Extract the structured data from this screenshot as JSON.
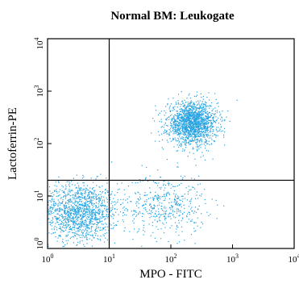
{
  "chart_data": {
    "type": "scatter",
    "title": "Normal BM: Leukogate",
    "xlabel": "MPO - FITC",
    "ylabel": "Lactoferrin-PE",
    "x_scale": "log",
    "y_scale": "log",
    "xlim": [
      1,
      10000
    ],
    "ylim": [
      1,
      10000
    ],
    "x_ticks": [
      {
        "value": 1,
        "base": "10",
        "exp": "0"
      },
      {
        "value": 10,
        "base": "10",
        "exp": "1"
      },
      {
        "value": 100,
        "base": "10",
        "exp": "2"
      },
      {
        "value": 1000,
        "base": "10",
        "exp": "3"
      },
      {
        "value": 10000,
        "base": "10",
        "exp": "4"
      }
    ],
    "y_ticks": [
      {
        "value": 1,
        "base": "10",
        "exp": "0"
      },
      {
        "value": 10,
        "base": "10",
        "exp": "1"
      },
      {
        "value": 100,
        "base": "10",
        "exp": "2"
      },
      {
        "value": 1000,
        "base": "10",
        "exp": "3"
      },
      {
        "value": 10000,
        "base": "10",
        "exp": "4"
      }
    ],
    "gates": {
      "vertical_x": 10,
      "horizontal_y": 20
    },
    "point_color": "#29a3e0",
    "grid": false,
    "clusters": [
      {
        "center": [
          3.2,
          5.0
        ],
        "spread": [
          0.32,
          0.28
        ],
        "count": 1400
      },
      {
        "center": [
          80,
          7.0
        ],
        "spread": [
          0.33,
          0.3
        ],
        "count": 450
      },
      {
        "center": [
          220,
          250
        ],
        "spread": [
          0.2,
          0.2
        ],
        "count": 1700
      }
    ]
  }
}
